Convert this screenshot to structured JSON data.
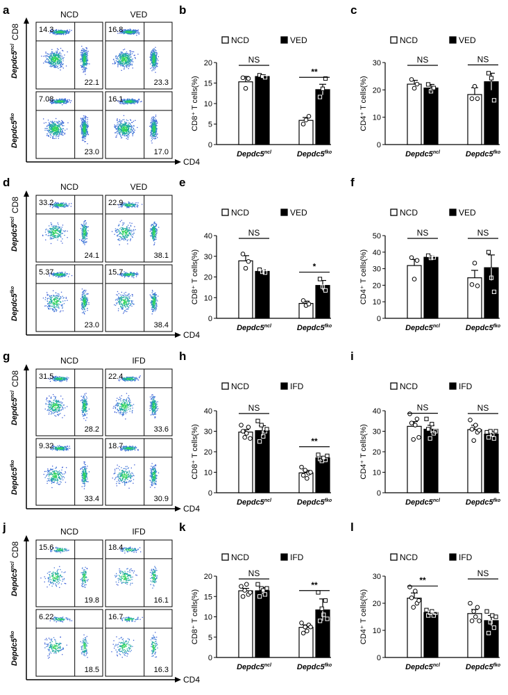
{
  "group_label": "Depdc5",
  "flow_panels": [
    {
      "letter": "a",
      "cols": [
        "NCD",
        "VED"
      ],
      "xlabel": "CD4",
      "ylabel": "CD8",
      "rows": [
        "ncl",
        "fko"
      ],
      "values": [
        [
          "14.3",
          "22.1",
          "16.8",
          "23.3"
        ],
        [
          "7.08",
          "23.0",
          "16.1",
          "17.0"
        ]
      ],
      "style": "dense"
    },
    {
      "letter": "d",
      "cols": [
        "NCD",
        "VED"
      ],
      "xlabel": "CD4",
      "ylabel": "CD8",
      "rows": [
        "ncl",
        "fko"
      ],
      "values": [
        [
          "33.2",
          "24.1",
          "22.9",
          "38.1"
        ],
        [
          "5.37",
          "23.0",
          "15.7",
          "38.4"
        ]
      ],
      "style": "medium"
    },
    {
      "letter": "g",
      "cols": [
        "NCD",
        "IFD"
      ],
      "xlabel": "CD4",
      "ylabel": "CD8",
      "rows": [
        "ncl",
        "fko"
      ],
      "values": [
        [
          "31.5",
          "28.2",
          "22.4",
          "33.6"
        ],
        [
          "9.32",
          "33.4",
          "18.7",
          "30.9"
        ]
      ],
      "style": "medium"
    },
    {
      "letter": "j",
      "cols": [
        "NCD",
        "IFD"
      ],
      "xlabel": "CD4",
      "ylabel": "CD8",
      "rows": [
        "ncl",
        "fko"
      ],
      "values": [
        [
          "15.6",
          "19.8",
          "18.4",
          "16.1"
        ],
        [
          "6.22",
          "18.5",
          "16.7",
          "16.3"
        ]
      ],
      "style": "sparse"
    }
  ],
  "chart_data": [
    {
      "letter": "b",
      "type": "bar",
      "ylabel": "CD8⁺ T cells(%)",
      "ylim": [
        0,
        20
      ],
      "yticks": [
        0,
        5,
        10,
        15,
        20
      ],
      "legend": [
        "NCD",
        "VED"
      ],
      "categories": [
        "ncl",
        "fko"
      ],
      "series": [
        {
          "name": "NCD",
          "values": [
            15.3,
            5.9
          ],
          "err": [
            1.3,
            0.7
          ],
          "points": [
            [
              16.3,
              13.7,
              16.1
            ],
            [
              5.0,
              6.0,
              6.9
            ]
          ]
        },
        {
          "name": "VED",
          "values": [
            16.6,
            13.4
          ],
          "err": [
            0.4,
            1.3
          ],
          "points": [
            [
              16.9,
              16.6,
              16.4
            ],
            [
              11.6,
              13.6,
              16.1
            ]
          ]
        }
      ],
      "sig": [
        "NS",
        "**"
      ]
    },
    {
      "letter": "c",
      "type": "bar",
      "ylabel": "CD4⁺ T cells(%)",
      "ylim": [
        0,
        30
      ],
      "yticks": [
        0,
        10,
        20,
        30
      ],
      "legend": [
        "NCD",
        "VED"
      ],
      "categories": [
        "ncl",
        "fko"
      ],
      "series": [
        {
          "name": "NCD",
          "values": [
            22.1,
            18.3
          ],
          "err": [
            1.4,
            2.5
          ],
          "points": [
            [
              23.8,
              20.6,
              22.1
            ],
            [
              16.8,
              21.3,
              16.8
            ]
          ]
        },
        {
          "name": "VED",
          "values": [
            20.7,
            23.0
          ],
          "err": [
            1.3,
            3.1
          ],
          "points": [
            [
              22.0,
              19.5,
              20.7
            ],
            [
              26.1,
              24.3,
              16.2
            ]
          ]
        }
      ],
      "sig": [
        "NS",
        "NS"
      ]
    },
    {
      "letter": "e",
      "type": "bar",
      "ylabel": "CD8⁺ T cells(%)",
      "ylim": [
        0,
        40
      ],
      "yticks": [
        0,
        10,
        20,
        30,
        40
      ],
      "legend": [
        "NCD",
        "VED"
      ],
      "categories": [
        "ncl",
        "fko"
      ],
      "series": [
        {
          "name": "NCD",
          "values": [
            27.8,
            7.2
          ],
          "err": [
            2.5,
            1.1
          ],
          "points": [
            [
              31.1,
              24.2,
              27.5
            ],
            [
              8.6,
              6.2,
              6.9
            ]
          ]
        },
        {
          "name": "VED",
          "values": [
            22.7,
            15.9
          ],
          "err": [
            0.7,
            2.4
          ],
          "points": [
            [
              23.5,
              22.5,
              22.1
            ],
            [
              19.0,
              15.3,
              13.5
            ]
          ]
        }
      ],
      "sig": [
        "NS",
        "*"
      ]
    },
    {
      "letter": "f",
      "type": "bar",
      "ylabel": "CD4⁺ T cells(%)",
      "ylim": [
        0,
        50
      ],
      "yticks": [
        0,
        10,
        20,
        30,
        40,
        50
      ],
      "legend": [
        "NCD",
        "VED"
      ],
      "categories": [
        "ncl",
        "fko"
      ],
      "series": [
        {
          "name": "NCD",
          "values": [
            31.9,
            24.5
          ],
          "err": [
            3.7,
            4.5
          ],
          "points": [
            [
              36.7,
              23.7,
              35.0
            ],
            [
              20.4,
              33.4,
              19.6
            ]
          ]
        },
        {
          "name": "VED",
          "values": [
            36.9,
            30.6
          ],
          "err": [
            1.0,
            7.7
          ],
          "points": [
            [
              37.9,
              36.5,
              36.8
            ],
            [
              40.0,
              24.5,
              16.0
            ]
          ]
        }
      ],
      "sig": [
        "NS",
        "NS"
      ]
    },
    {
      "letter": "h",
      "type": "bar",
      "ylabel": "CD8⁺ T cells(%)",
      "ylim": [
        0,
        40
      ],
      "yticks": [
        0,
        10,
        20,
        30,
        40
      ],
      "legend": [
        "NCD",
        "IFD"
      ],
      "categories": [
        "ncl",
        "fko"
      ],
      "series": [
        {
          "name": "NCD",
          "values": [
            29.6,
            9.7
          ],
          "err": [
            1.2,
            1.2
          ],
          "points": [
            [
              33.0,
              30.0,
              27.0,
              29.0,
              32.0,
              26.5
            ],
            [
              12.5,
              8.5,
              11.0,
              7.0,
              9.5,
              10.0
            ]
          ]
        },
        {
          "name": "IFD",
          "values": [
            30.3,
            17.0
          ],
          "err": [
            2.4,
            0.7
          ],
          "points": [
            [
              35.0,
              25.0,
              33.0,
              27.5,
              30.0,
              31.0
            ],
            [
              18.5,
              16.5,
              15.5,
              17.0,
              16.0,
              18.0
            ]
          ]
        }
      ],
      "sig": [
        "NS",
        "**"
      ]
    },
    {
      "letter": "i",
      "type": "bar",
      "ylabel": "CD4⁺ T cells(%)",
      "ylim": [
        0,
        40
      ],
      "yticks": [
        0,
        10,
        20,
        30,
        40
      ],
      "legend": [
        "NCD",
        "IFD"
      ],
      "categories": [
        "ncl",
        "fko"
      ],
      "series": [
        {
          "name": "NCD",
          "values": [
            32.4,
            30.8
          ],
          "err": [
            2.3,
            2.1
          ],
          "points": [
            [
              38.5,
              34.0,
              26.0,
              33.0,
              36.0,
              27.0
            ],
            [
              35.5,
              31.0,
              25.5,
              33.0,
              29.5,
              30.5
            ]
          ]
        },
        {
          "name": "IFD",
          "values": [
            31.0,
            28.6
          ],
          "err": [
            1.9,
            1.1
          ],
          "points": [
            [
              36.0,
              31.0,
              26.5,
              33.5,
              29.0,
              30.0
            ],
            [
              29.5,
              27.0,
              30.0,
              28.5,
              26.5,
              30.0
            ]
          ]
        }
      ],
      "sig": [
        "NS",
        "NS"
      ]
    },
    {
      "letter": "k",
      "type": "bar",
      "ylabel": "CD8⁺ T cells(%)",
      "ylim": [
        0,
        20
      ],
      "yticks": [
        0,
        5,
        10,
        15,
        20
      ],
      "legend": [
        "NCD",
        "IFD"
      ],
      "categories": [
        "ncl",
        "fko"
      ],
      "series": [
        {
          "name": "NCD",
          "values": [
            16.4,
            7.4
          ],
          "err": [
            0.6,
            0.6
          ],
          "points": [
            [
              17.5,
              15.0,
              16.5,
              18.0,
              15.5,
              16.0
            ],
            [
              8.5,
              6.0,
              7.5,
              6.5,
              8.0,
              7.5
            ]
          ]
        },
        {
          "name": "IFD",
          "values": [
            16.4,
            11.7
          ],
          "err": [
            0.8,
            2.7
          ],
          "points": [
            [
              18.0,
              15.0,
              17.0,
              16.5,
              15.5,
              17.0
            ],
            [
              16.0,
              9.0,
              12.0,
              10.5,
              14.0,
              9.5
            ]
          ]
        }
      ],
      "sig": [
        "NS",
        "**"
      ]
    },
    {
      "letter": "l",
      "type": "bar",
      "ylabel": "CD4⁺ T cells(%)",
      "ylim": [
        0,
        30
      ],
      "yticks": [
        0,
        10,
        20,
        30
      ],
      "legend": [
        "NCD",
        "IFD"
      ],
      "categories": [
        "ncl",
        "fko"
      ],
      "series": [
        {
          "name": "NCD",
          "values": [
            21.9,
            16.2
          ],
          "err": [
            1.9,
            1.5
          ],
          "points": [
            [
              26.0,
              22.0,
              18.5,
              24.5,
              20.0,
              21.0
            ],
            [
              20.0,
              13.5,
              17.0,
              15.0,
              18.5,
              13.5
            ]
          ]
        },
        {
          "name": "IFD",
          "values": [
            16.6,
            13.6
          ],
          "err": [
            0.6,
            1.9
          ],
          "points": [
            [
              17.5,
              15.5,
              16.5,
              17.0,
              15.5,
              16.5
            ],
            [
              17.0,
              9.0,
              13.0,
              15.5,
              11.0,
              15.0
            ]
          ]
        }
      ],
      "sig": [
        "**",
        "NS"
      ]
    }
  ]
}
